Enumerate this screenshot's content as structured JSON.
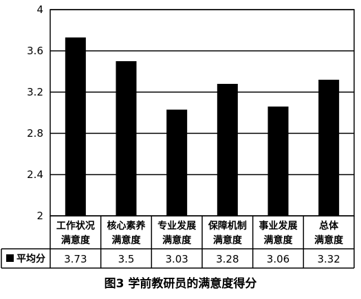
{
  "chart_data": {
    "type": "bar",
    "categories": [
      [
        "工作状况",
        "满意度"
      ],
      [
        "核心素养",
        "满意度"
      ],
      [
        "专业发展",
        "满意度"
      ],
      [
        "保障机制",
        "满意度"
      ],
      [
        "事业发展",
        "满意度"
      ],
      [
        "总体",
        "满意度"
      ]
    ],
    "series": [
      {
        "name": "平均分",
        "values": [
          3.73,
          3.5,
          3.03,
          3.28,
          3.06,
          3.32
        ]
      }
    ],
    "value_labels": [
      "3.73",
      "3.5",
      "3.03",
      "3.28",
      "3.06",
      "3.32"
    ],
    "y_ticks": [
      "4",
      "3.6",
      "3.2",
      "2.8",
      "2.4",
      "2"
    ],
    "ylim": [
      2,
      4
    ],
    "grid": true,
    "data_table": true,
    "legend_position": "table-left",
    "bar_color": "#000000",
    "title": "图3 学前教研员的满意度得分"
  }
}
